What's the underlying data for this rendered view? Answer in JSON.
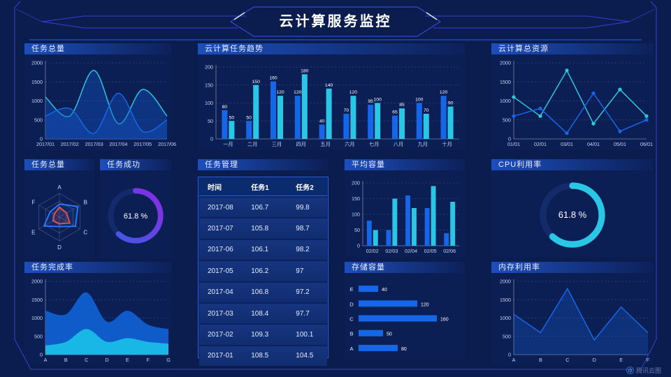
{
  "header": {
    "title": "云计算服务监控"
  },
  "footer": {
    "brand": "腾讯云图"
  },
  "colors": {
    "blue": "#1667E8",
    "cyan": "#29C6E6",
    "teal_line": "#2CC7D9",
    "purple_start": "#3D5BE8",
    "purple_end": "#8B2BE2",
    "radar_blue": "#2E7BFF",
    "radar_red": "#F0503C",
    "frame_line": "#3A3FD0",
    "title_bar": "#1D4EBC"
  },
  "panels": {
    "task_total_line": {
      "title": "任务总量"
    },
    "task_trend": {
      "title": "云计算任务趋势"
    },
    "resources": {
      "title": "云计算总资源"
    },
    "task_total_radar": {
      "title": "任务总量"
    },
    "task_success": {
      "title": "任务成功"
    },
    "task_table": {
      "title": "任务管理"
    },
    "avg_capacity": {
      "title": "平均容量"
    },
    "cpu": {
      "title": "CPU利用率"
    },
    "completion": {
      "title": "任务完成率"
    },
    "storage": {
      "title": "存储容量"
    },
    "memory": {
      "title": "内存利用率"
    }
  },
  "table": {
    "headers": [
      "时间",
      "任务1",
      "任务2"
    ],
    "rows": [
      [
        "2017-08",
        "106.7",
        "99.8"
      ],
      [
        "2017-07",
        "105.8",
        "98.7"
      ],
      [
        "2017-06",
        "106.1",
        "98.2"
      ],
      [
        "2017-05",
        "106.2",
        "97"
      ],
      [
        "2017-04",
        "106.8",
        "97.2"
      ],
      [
        "2017-03",
        "108.4",
        "97.7"
      ],
      [
        "2017-02",
        "109.3",
        "100.1"
      ],
      [
        "2017-01",
        "108.5",
        "104.5"
      ]
    ]
  },
  "chart_data": {
    "task_total": {
      "type": "smooth_lines",
      "title": "任务总量",
      "x": [
        "2017/01",
        "2017/02",
        "2017/03",
        "2017/04",
        "2017/05",
        "2017/06"
      ],
      "yticks": [
        0,
        500,
        1000,
        1500,
        2000
      ],
      "ylim": [
        0,
        2000
      ],
      "series": [
        {
          "name": "series-cyan",
          "color": "#2CC7D9",
          "fill": "rgba(20,80,190,0.42)",
          "values": [
            1100,
            600,
            1800,
            400,
            1300,
            600
          ]
        },
        {
          "name": "series-blue",
          "color": "#1667E8",
          "fill": "rgba(20,80,190,0.42)",
          "values": [
            600,
            800,
            150,
            1200,
            200,
            500
          ]
        }
      ]
    },
    "task_trend": {
      "type": "grouped_bars",
      "title": "云计算任务趋势",
      "labels": true,
      "categories": [
        "一月",
        "二月",
        "三月",
        "四月",
        "五月",
        "六月",
        "七月",
        "八月",
        "九月",
        "十月"
      ],
      "yticks": [
        0,
        50,
        100,
        150,
        200
      ],
      "ylim": [
        0,
        200
      ],
      "series": [
        {
          "name": "series-blue",
          "color": "#1667E8",
          "values": [
            80,
            50,
            160,
            120,
            40,
            70,
            95,
            65,
            100,
            120
          ]
        },
        {
          "name": "series-cyan",
          "color": "#29C6E6",
          "values": [
            50,
            150,
            120,
            180,
            140,
            120,
            100,
            85,
            70,
            90
          ]
        }
      ]
    },
    "resources": {
      "type": "marker_lines",
      "title": "云计算总资源",
      "x": [
        "01/01",
        "02/01",
        "03/01",
        "04/01",
        "05/01",
        "06/01"
      ],
      "yticks": [
        0,
        500,
        1000,
        1500,
        2000
      ],
      "ylim": [
        0,
        2000
      ],
      "series": [
        {
          "name": "series-cyan",
          "color": "#2CC7D9",
          "values": [
            1100,
            600,
            1800,
            400,
            1300,
            600
          ]
        },
        {
          "name": "series-blue",
          "color": "#1667E8",
          "values": [
            600,
            800,
            150,
            1200,
            200,
            500
          ]
        }
      ]
    },
    "radar": {
      "type": "radar",
      "title": "任务总量",
      "indicators": [
        "A",
        "B",
        "C",
        "D",
        "E",
        "F"
      ],
      "max": 100,
      "series": [
        {
          "name": "blue-polygon",
          "color": "#2E7BFF",
          "values": [
            55,
            90,
            78,
            40,
            75,
            45
          ]
        },
        {
          "name": "red-polygon",
          "color": "#F0503C",
          "values": [
            42,
            35,
            50,
            28,
            30,
            25
          ]
        }
      ]
    },
    "success_donut": {
      "type": "donut",
      "title": "任务成功",
      "percent": 61.8,
      "label": "61.8 %",
      "track": "#132B6B",
      "colors": [
        "#3D5BE8",
        "#8B2BE2"
      ]
    },
    "avg_capacity": {
      "type": "grouped_bars",
      "title": "平均容量",
      "labels": false,
      "categories": [
        "02/02",
        "02/03",
        "02/04",
        "02/05",
        "02/06"
      ],
      "yticks": [
        0,
        50,
        100,
        150,
        200
      ],
      "ylim": [
        0,
        200
      ],
      "series": [
        {
          "name": "series-blue",
          "color": "#1667E8",
          "values": [
            80,
            50,
            160,
            120,
            40
          ]
        },
        {
          "name": "series-cyan",
          "color": "#29C6E6",
          "values": [
            50,
            150,
            120,
            190,
            140
          ]
        }
      ]
    },
    "cpu_donut": {
      "type": "donut",
      "title": "CPU利用率",
      "percent": 61.8,
      "label": "61.8 %",
      "track": "#132B6B",
      "colors": [
        "#29C6E6",
        "#29C6E6"
      ]
    },
    "completion": {
      "type": "stacked_area",
      "title": "任务完成率",
      "x": [
        "A",
        "B",
        "C",
        "D",
        "E",
        "F",
        "G"
      ],
      "yticks": [
        0,
        500,
        1000,
        1500,
        2000
      ],
      "ylim": [
        0,
        2000
      ],
      "series": [
        {
          "name": "blue-area",
          "color": "#0F5FD0",
          "values": [
            1200,
            1100,
            1700,
            900,
            1200,
            820,
            700
          ]
        },
        {
          "name": "cyan-area",
          "color": "#19BDE8",
          "values": [
            250,
            350,
            700,
            350,
            450,
            350,
            300
          ]
        }
      ]
    },
    "storage": {
      "type": "hbars",
      "title": "存储容量",
      "xmax": 180,
      "color": "#1667E8",
      "rows": [
        {
          "label": "E",
          "value": 40
        },
        {
          "label": "D",
          "value": 120
        },
        {
          "label": "C",
          "value": 160
        },
        {
          "label": "B",
          "value": 50
        },
        {
          "label": "A",
          "value": 80
        }
      ]
    },
    "memory": {
      "type": "area_line",
      "title": "内存利用率",
      "x": [
        "A",
        "B",
        "C",
        "D",
        "E",
        "F"
      ],
      "yticks": [
        0,
        500,
        1000,
        1500,
        2000
      ],
      "ylim": [
        0,
        2000
      ],
      "series": [
        {
          "name": "blue-line",
          "color": "#1667E8",
          "fill": "rgba(23,102,232,0.25)",
          "values": [
            1100,
            600,
            1800,
            400,
            1300,
            600
          ]
        }
      ]
    }
  }
}
